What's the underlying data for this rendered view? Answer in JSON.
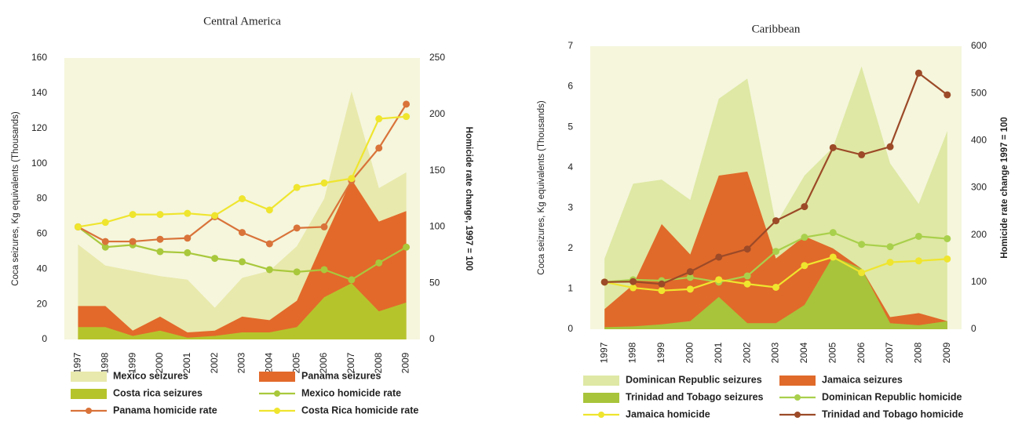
{
  "chart_data": [
    {
      "type": "combo",
      "title": "Central America",
      "y_label": "Coca seizures, Kg equivalents (Thousands)",
      "y2_label": "Homicide rate change, 1997 = 100",
      "categories": [
        "1997",
        "1998",
        "1999",
        "2000",
        "2001",
        "2002",
        "2003",
        "2004",
        "2005",
        "2006",
        "2007",
        "2008",
        "2009"
      ],
      "ylim": [
        0,
        160
      ],
      "yticks": [
        0,
        20,
        40,
        60,
        80,
        100,
        120,
        140,
        160
      ],
      "y2lim": [
        0,
        250
      ],
      "y2ticks": [
        0,
        50,
        100,
        150,
        200,
        250
      ],
      "background": "#f5f6dc",
      "series": [
        {
          "name": "Mexico seizures",
          "kind": "area",
          "color": "#e8e9ac",
          "values": [
            54,
            42,
            39,
            36,
            34,
            18,
            35,
            39,
            53,
            80,
            141,
            86,
            95
          ]
        },
        {
          "name": "Panama seizures",
          "kind": "area",
          "color": "#e2692a",
          "values": [
            19,
            19,
            5,
            13,
            4,
            5,
            13,
            11,
            22,
            57,
            91,
            67,
            73
          ]
        },
        {
          "name": "Costa rica seizures",
          "kind": "area",
          "color": "#b6c42c",
          "values": [
            7,
            7,
            2,
            5,
            1,
            2,
            4,
            4,
            7,
            24,
            32,
            16,
            21
          ]
        },
        {
          "name": "Mexico homicide rate",
          "kind": "line",
          "axis": "y2",
          "color": "#a9c83c",
          "values": [
            100,
            82,
            84,
            78,
            77,
            72,
            69,
            62,
            60,
            62,
            53,
            68,
            82
          ]
        },
        {
          "name": "Panama homicide rate",
          "kind": "line",
          "axis": "y2",
          "color": "#d9733a",
          "values": [
            100,
            87,
            87,
            89,
            90,
            109,
            95,
            85,
            99,
            100,
            141,
            170,
            209
          ]
        },
        {
          "name": "Costa Rica homicide rate",
          "kind": "line",
          "axis": "y2",
          "color": "#efe52e",
          "values": [
            100,
            104,
            111,
            111,
            112,
            110,
            125,
            115,
            135,
            139,
            143,
            196,
            198
          ]
        }
      ]
    },
    {
      "type": "combo",
      "title": "Caribbean",
      "y_label": "Coca seizures, Kg equivalents (Thousands)",
      "y2_label": "Homicide rate change 1997 = 100",
      "categories": [
        "1997",
        "1998",
        "1999",
        "2000",
        "2001",
        "2002",
        "2003",
        "2004",
        "2005",
        "2006",
        "2007",
        "2008",
        "2009"
      ],
      "ylim": [
        0,
        7
      ],
      "yticks": [
        0,
        1,
        2,
        3,
        4,
        5,
        6,
        7
      ],
      "y2lim": [
        0,
        600
      ],
      "y2ticks": [
        0,
        100,
        200,
        300,
        400,
        500,
        600
      ],
      "background": "#f5f6dc",
      "series": [
        {
          "name": "Dominican Republic seizures",
          "kind": "area",
          "color": "#dfe8a4",
          "values": [
            1.75,
            3.6,
            3.7,
            3.2,
            5.7,
            6.2,
            2.6,
            3.8,
            4.5,
            6.5,
            4.1,
            3.1,
            4.9
          ]
        },
        {
          "name": "Jamaica seizures",
          "kind": "area",
          "color": "#e06a2a",
          "values": [
            0.5,
            1.1,
            2.6,
            1.85,
            3.8,
            3.9,
            1.75,
            2.3,
            2.0,
            1.5,
            0.3,
            0.4,
            0.2
          ]
        },
        {
          "name": "Trinidad and Tobago seizures",
          "kind": "area",
          "color": "#a8c43a",
          "values": [
            0.05,
            0.07,
            0.12,
            0.2,
            0.8,
            0.15,
            0.15,
            0.6,
            1.8,
            1.5,
            0.15,
            0.1,
            0.2
          ]
        },
        {
          "name": "Dominican Republic homicide",
          "kind": "line",
          "axis": "y2",
          "color": "#a9d04c",
          "values": [
            100,
            105,
            103,
            110,
            100,
            113,
            165,
            195,
            205,
            180,
            175,
            197,
            192
          ]
        },
        {
          "name": "Jamaica homicide",
          "kind": "line",
          "axis": "y2",
          "color": "#efe52e",
          "values": [
            100,
            88,
            82,
            85,
            105,
            96,
            89,
            135,
            153,
            120,
            142,
            145,
            149
          ]
        },
        {
          "name": "Trinidad and Tobago homicide",
          "kind": "line",
          "axis": "y2",
          "color": "#9c4a28",
          "values": [
            100,
            101,
            96,
            122,
            153,
            170,
            230,
            260,
            385,
            370,
            387,
            543,
            497
          ]
        }
      ]
    }
  ]
}
